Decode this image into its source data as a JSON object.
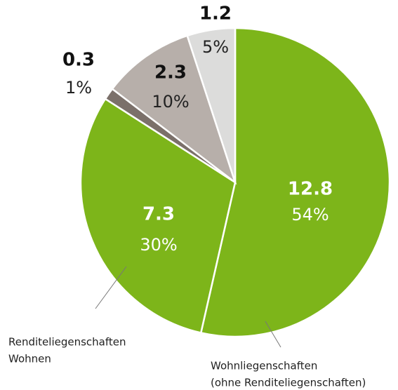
{
  "chart_data": {
    "type": "pie",
    "categories": [
      [
        "Wohnliegenschaften",
        "(ohne Renditeliegenschaften)"
      ],
      [
        "Renditeliegenschaften",
        "Wohnen"
      ],
      null,
      null,
      null
    ],
    "values": [
      12.8,
      7.3,
      0.3,
      2.3,
      1.2
    ],
    "percent_labels": [
      "54%",
      "30%",
      "1%",
      "10%",
      "5%"
    ],
    "colors": [
      "#7db51a",
      "#7db51a",
      "#7b706a",
      "#b7afaa",
      "#dcdcdb"
    ]
  }
}
